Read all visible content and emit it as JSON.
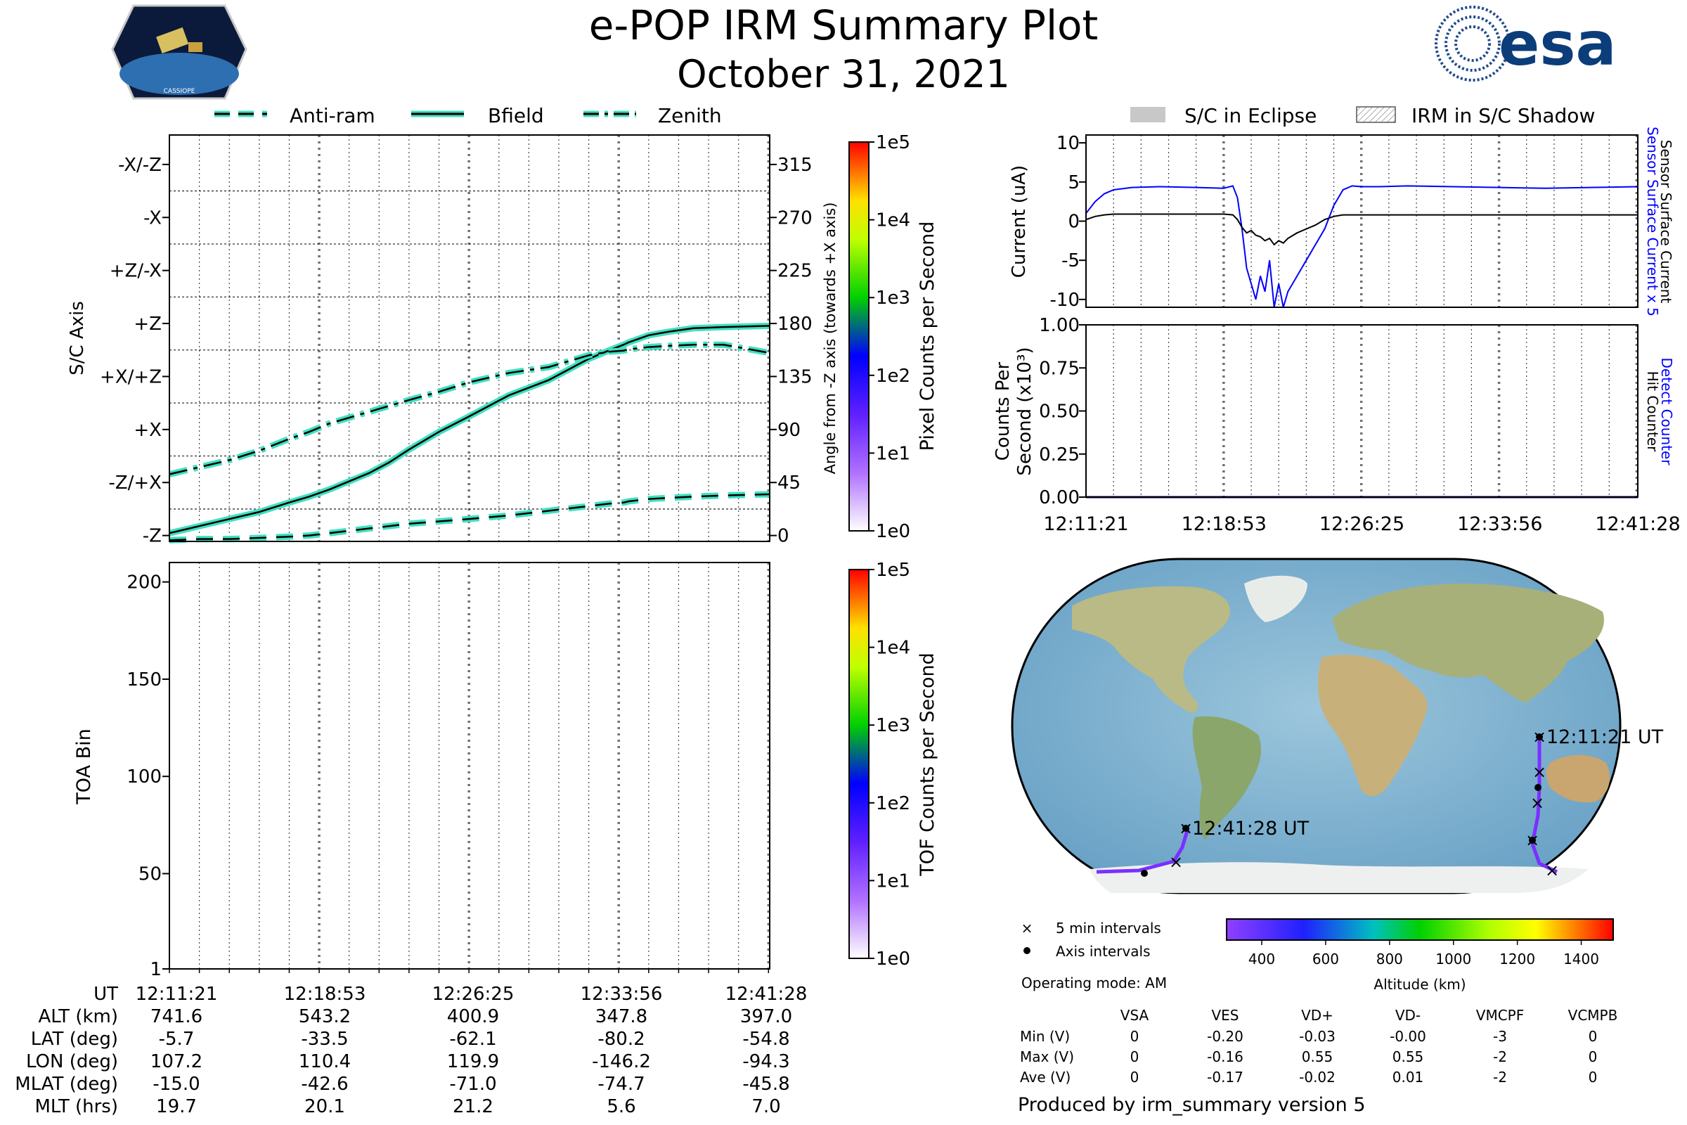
{
  "title": "e-POP IRM Summary Plot",
  "date": "October 31, 2021",
  "logo_left_text": "CASSIOPE",
  "logo_right_text": "esa",
  "legend_left": [
    "Anti-ram",
    "Bfield",
    "Zenith"
  ],
  "legend_right": [
    "S/C in Eclipse",
    "IRM in S/C Shadow"
  ],
  "time_ticks": [
    "12:11:21",
    "12:18:53",
    "12:26:25",
    "12:33:56",
    "12:41:28"
  ],
  "info_table": {
    "headers": [
      "UT",
      "ALT (km)",
      "LAT (deg)",
      "LON (deg)",
      "MLAT (deg)",
      "MLT (hrs)"
    ],
    "rows": [
      [
        "12:11:21",
        "741.6",
        "-5.7",
        "107.2",
        "-15.0",
        "19.7"
      ],
      [
        "12:18:53",
        "543.2",
        "-33.5",
        "110.4",
        "-42.6",
        "20.1"
      ],
      [
        "12:26:25",
        "400.9",
        "-62.1",
        "119.9",
        "-71.0",
        "21.2"
      ],
      [
        "12:33:56",
        "347.8",
        "-80.2",
        "-146.2",
        "-74.7",
        "5.6"
      ],
      [
        "12:41:28",
        "397.0",
        "-54.8",
        "-94.3",
        "-45.8",
        "7.0"
      ]
    ]
  },
  "map": {
    "start_label": "12:11:21 UT",
    "end_label": "12:41:28 UT",
    "legend": [
      "5 min intervals",
      "Axis intervals"
    ],
    "operating_mode": "Operating mode: AM"
  },
  "altitude_bar": {
    "label": "Altitude (km)",
    "ticks": [
      "400",
      "600",
      "800",
      "1000",
      "1200",
      "1400"
    ]
  },
  "voltage_table": {
    "columns": [
      "VSA",
      "VES",
      "VD+",
      "VD-",
      "VMCPF",
      "VCMPB"
    ],
    "rows": [
      {
        "label": "Min (V)",
        "values": [
          "0",
          "-0.20",
          "-0.03",
          "-0.00",
          "-3",
          "0"
        ]
      },
      {
        "label": "Max (V)",
        "values": [
          "0",
          "-0.16",
          "0.55",
          "0.55",
          "-2",
          "0"
        ]
      },
      {
        "label": "Ave (V)",
        "values": [
          "0",
          "-0.17",
          "-0.02",
          "0.01",
          "-2",
          "0"
        ]
      }
    ]
  },
  "footer": "Produced by irm_summary version 5",
  "colors": {
    "trace_fill": "#40e0c0",
    "sensor": "#0000ff",
    "surface": "#000000"
  },
  "chart_data": [
    {
      "type": "line",
      "ylabel": "S/C Axis",
      "ylabel_right": "Angle from -Z axis (towards +X axis)",
      "colorbar_label": "Pixel Counts per Second",
      "colorbar_ticks": [
        "1e0",
        "1e1",
        "1e2",
        "1e3",
        "1e4",
        "1e5"
      ],
      "axis_labels": [
        "-Z",
        "-Z/+X",
        "+X",
        "+X/+Z",
        "+Z",
        "+Z/-X",
        "-X",
        "-X/-Z"
      ],
      "angle_ticks": [
        "0",
        "45",
        "90",
        "135",
        "180",
        "225",
        "270",
        "315"
      ],
      "ylim": [
        -5,
        340
      ],
      "x_minutes": [
        0,
        3,
        6,
        9,
        12,
        14,
        16,
        18,
        20,
        22,
        24,
        27,
        30,
        34,
        38,
        40,
        42,
        44,
        45.5,
        46,
        48,
        50,
        52.5,
        55.5,
        60.12
      ],
      "series": [
        {
          "name": "Bfield",
          "style": "solid",
          "values": [
            2,
            8,
            14,
            20,
            28,
            33,
            39,
            46,
            53,
            62,
            73,
            88,
            101,
            119,
            132,
            141,
            150,
            157,
            162,
            164,
            170,
            173,
            176,
            177,
            178
          ]
        },
        {
          "name": "Zenith",
          "style": "dashdot",
          "values": [
            52,
            58,
            64,
            72,
            82,
            88,
            95,
            100,
            105,
            110,
            115,
            122,
            130,
            138,
            143,
            148,
            153,
            156,
            157,
            158,
            160,
            161,
            162,
            162,
            155
          ]
        },
        {
          "name": "Anti-ram",
          "style": "dashed",
          "values": [
            -4,
            -3,
            -3,
            -2,
            -1,
            0,
            2,
            4,
            6,
            8,
            10,
            12,
            14,
            17,
            21,
            23,
            25,
            27,
            28,
            29,
            31,
            32,
            33,
            34,
            35
          ]
        }
      ]
    },
    {
      "type": "heatmap",
      "ylabel": "TOA Bin",
      "yticks": [
        "1",
        "50",
        "100",
        "150",
        "200"
      ],
      "ylim": [
        1,
        210
      ],
      "colorbar_label": "TOF Counts per Second",
      "colorbar_ticks": [
        "1e0",
        "1e1",
        "1e2",
        "1e3",
        "1e4",
        "1e5"
      ],
      "values": []
    },
    {
      "type": "line",
      "ylabel": "Current (uA)",
      "ylim": [
        -11,
        11
      ],
      "yticks": [
        "-10",
        "-5",
        "0",
        "5",
        "10"
      ],
      "right_labels": [
        "Sensor Surface Current x 5",
        "Sensor Surface Current"
      ],
      "x_minutes": [
        0,
        1,
        2,
        3,
        5,
        8,
        12,
        15,
        16,
        16.5,
        17,
        17.5,
        18,
        18.5,
        19,
        19.5,
        20,
        20.5,
        21,
        21.5,
        22,
        23,
        24,
        25,
        26,
        27,
        28,
        29,
        30,
        32,
        35,
        40,
        45,
        50,
        55,
        60.12
      ],
      "series": [
        {
          "name": "Sensor Surface Current x 5",
          "values": [
            1,
            2.5,
            3.5,
            4,
            4.3,
            4.4,
            4.3,
            4.2,
            4.5,
            3,
            -1,
            -6,
            -8,
            -10,
            -7,
            -9,
            -5,
            -11,
            -8,
            -12,
            -9,
            -7,
            -5,
            -3,
            -1,
            2,
            4,
            4.5,
            4.4,
            4.4,
            4.5,
            4.4,
            4.3,
            4.2,
            4.3,
            4.4
          ]
        },
        {
          "name": "Sensor Surface Current",
          "values": [
            0.2,
            0.6,
            0.8,
            0.9,
            0.9,
            0.9,
            0.9,
            0.9,
            0.8,
            0.2,
            -0.8,
            -1.5,
            -1.2,
            -1.8,
            -2,
            -2.5,
            -2.2,
            -3,
            -2.5,
            -2.8,
            -2.2,
            -1.5,
            -1,
            -0.5,
            0.2,
            0.6,
            0.8,
            0.8,
            0.8,
            0.8,
            0.8,
            0.8,
            0.8,
            0.8,
            0.8,
            0.8
          ]
        }
      ]
    },
    {
      "type": "line",
      "ylabel": "Counts Per Second (x10³)",
      "ylim": [
        0,
        1
      ],
      "yticks": [
        "0.00",
        "0.25",
        "0.50",
        "0.75",
        "1.00"
      ],
      "right_labels": [
        "Detect Counter",
        "Hit Counter"
      ],
      "x_minutes": [
        0,
        60.12
      ],
      "series": [
        {
          "name": "Detect Counter",
          "values": [
            0,
            0
          ]
        },
        {
          "name": "Hit Counter",
          "values": [
            0,
            0
          ]
        }
      ]
    }
  ]
}
